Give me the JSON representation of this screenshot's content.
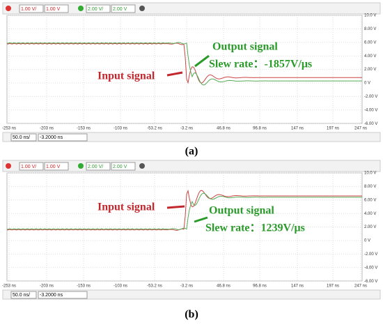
{
  "panels": [
    {
      "toolbar": [
        "1.00 V/",
        "1.00 V",
        "2.00 V/",
        "2.00 V"
      ],
      "yticks": [
        "10.0 V",
        "8.00 V",
        "6.00 V",
        "4.00 V",
        "2.00 V",
        "0 V",
        "-2.00 V",
        "-4.00 V",
        "-6.00 V"
      ],
      "xticks": [
        "-253 ns",
        "-203 ns",
        "-153 ns",
        "-103 ns",
        "-53.2 ns",
        "-3.2 ns",
        "46.8 ns",
        "96.8 ns",
        "147 ns",
        "197 ns",
        "247 ns"
      ],
      "footer": [
        "50.0 ns/",
        "-3.2000 ns"
      ],
      "input_label": "Input signal",
      "output_label": "Output signal",
      "slew_rate": "Slew rate：-1857V/μs",
      "caption": "(a)"
    },
    {
      "toolbar": [
        "1.00 V/",
        "1.00 V",
        "2.00 V/",
        "2.00 V"
      ],
      "yticks": [
        "10.0 V",
        "8.00 V",
        "6.00 V",
        "4.00 V",
        "2.00 V",
        "0 V",
        "-2.00 V",
        "-4.00 V",
        "-6.00 V"
      ],
      "xticks": [
        "-253 ns",
        "-203 ns",
        "-153 ns",
        "-103 ns",
        "-53.2 ns",
        "-3.2 ns",
        "46.8 ns",
        "96.8 ns",
        "147 ns",
        "197 ns",
        "247 ns"
      ],
      "footer": [
        "50.0 ns/",
        "-3.2000 ns"
      ],
      "input_label": "Input signal",
      "output_label": "Output signal",
      "slew_rate": "Slew rate：1239V/μs",
      "caption": "(b)"
    }
  ]
}
